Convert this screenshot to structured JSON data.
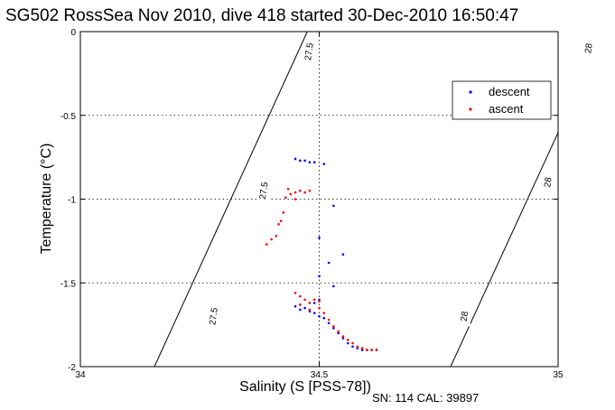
{
  "chart_data": {
    "type": "scatter",
    "title": "SG502 RossSea Nov 2010, dive 418 started 30-Dec-2010 16:50:47",
    "xlabel": "Salinity (S [PSS-78])",
    "ylabel": "Temperature (°C)",
    "xlim": [
      34,
      35
    ],
    "ylim": [
      -2,
      0
    ],
    "xticks": [
      "34",
      "34.5",
      "35"
    ],
    "yticks": [
      "0",
      "-0.5",
      "-1",
      "-1.5",
      "-2"
    ],
    "grid": true,
    "legend_position": "top-right",
    "colors": {
      "descent": "#0000ff",
      "ascent": "#ff0000",
      "contour": "#000000"
    },
    "density_contours": [
      {
        "label": "27.5",
        "x": [
          34.155,
          34.475
        ],
        "y": [
          -2,
          0
        ]
      },
      {
        "label": "28",
        "x": [
          34.775,
          35.097
        ],
        "y": [
          -2,
          0
        ]
      }
    ],
    "contour_labels": [
      {
        "text": "27.5",
        "x": 34.48,
        "y": -0.12
      },
      {
        "text": "27.5",
        "x": 34.385,
        "y": -0.95
      },
      {
        "text": "27.5",
        "x": 34.28,
        "y": -1.7
      },
      {
        "text": "28",
        "x": 35.065,
        "y": -0.1
      },
      {
        "text": "28",
        "x": 34.98,
        "y": -0.9
      },
      {
        "text": "28",
        "x": 34.805,
        "y": -1.7
      }
    ],
    "series": [
      {
        "name": "descent",
        "x": [
          34.45,
          34.46,
          34.47,
          34.48,
          34.49,
          34.51,
          34.53,
          34.5,
          34.5,
          34.52,
          34.55,
          34.53,
          34.5,
          34.49,
          34.45,
          34.46,
          34.46,
          34.47,
          34.48,
          34.49,
          34.5,
          34.51,
          34.52,
          34.53,
          34.54,
          34.55,
          34.56,
          34.57,
          34.58,
          34.59,
          34.6,
          34.61,
          34.62
        ],
        "y": [
          -0.76,
          -0.77,
          -0.77,
          -0.78,
          -0.78,
          -0.79,
          -1.04,
          -1.23,
          -1.46,
          -1.38,
          -1.33,
          -1.52,
          -1.6,
          -1.62,
          -1.64,
          -1.66,
          -1.63,
          -1.65,
          -1.67,
          -1.68,
          -1.7,
          -1.71,
          -1.74,
          -1.77,
          -1.8,
          -1.83,
          -1.86,
          -1.88,
          -1.89,
          -1.9,
          -1.9,
          -1.9,
          -1.9
        ]
      },
      {
        "name": "ascent",
        "x": [
          34.39,
          34.4,
          34.41,
          34.415,
          34.42,
          34.425,
          34.43,
          34.44,
          34.45,
          34.46,
          34.47,
          34.435,
          34.45,
          34.48,
          34.45,
          34.46,
          34.47,
          34.48,
          34.49,
          34.5,
          34.5,
          34.51,
          34.52,
          34.53,
          34.54,
          34.55,
          34.56,
          34.57,
          34.58,
          34.59,
          34.6,
          34.61,
          34.62,
          34.46,
          34.48
        ],
        "y": [
          -1.27,
          -1.24,
          -1.22,
          -1.15,
          -1.13,
          -1.08,
          -0.99,
          -0.97,
          -0.96,
          -0.95,
          -0.96,
          -0.94,
          -1.0,
          -0.95,
          -1.56,
          -1.58,
          -1.6,
          -1.62,
          -1.6,
          -1.61,
          -1.65,
          -1.68,
          -1.72,
          -1.76,
          -1.79,
          -1.82,
          -1.84,
          -1.86,
          -1.88,
          -1.89,
          -1.9,
          -1.9,
          -1.9,
          -1.63,
          -1.66
        ]
      }
    ]
  },
  "footer": "SN: 114  CAL: 39897"
}
